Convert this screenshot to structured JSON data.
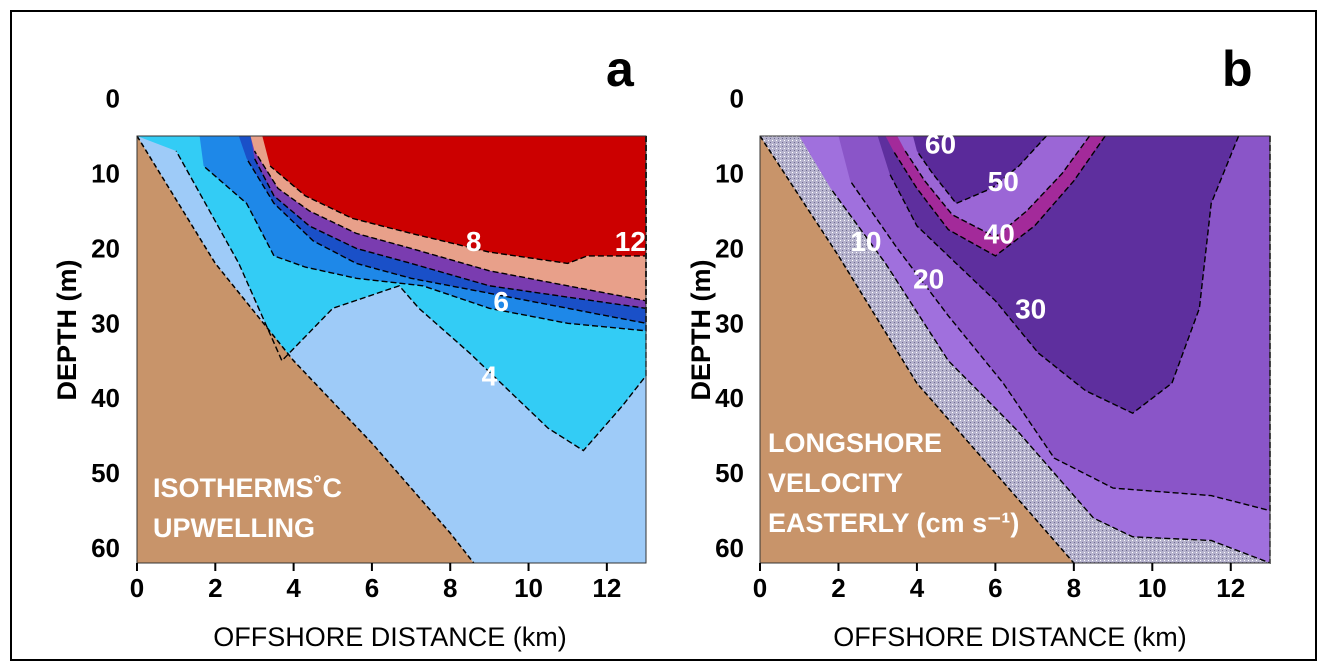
{
  "colors": {
    "seabed": "#c8946a",
    "temp_gt_12": "#cc0000",
    "temp_8_12": "#e8a08a",
    "temp_7_8": "#7a3cb0",
    "temp_6_7": "#1a50c8",
    "temp_5_6": "#1e88e8",
    "temp_4_5": "#33ccf5",
    "temp_lt_4": "#9ecbf8",
    "vel_gt_50": "#5a2a9a",
    "vel_40_50": "#9b66d6",
    "vel_band_40": "#a32a9a",
    "vel_30_40": "#5e2f9e",
    "vel_20_30": "#8a55c8",
    "vel_10_20": "#a070dd",
    "vel_lt_10": "#b5b2cc"
  },
  "chart_data": [
    {
      "panel_letter": "a",
      "type": "contour",
      "xlabel": "OFFSHORE DISTANCE (km)",
      "ylabel": "DEPTH (m)",
      "xlim": [
        0,
        13
      ],
      "ylim": [
        0,
        62
      ],
      "y_inverted": true,
      "x_ticks": [
        0,
        2,
        4,
        6,
        8,
        10,
        12
      ],
      "y_ticks": [
        0,
        10,
        20,
        30,
        40,
        50,
        60
      ],
      "annotation_lines": [
        "ISOTHERMS˚C",
        "UPWELLING"
      ],
      "contour_labels": [
        {
          "text": "8",
          "x": 8.6,
          "y": 19
        },
        {
          "text": "12",
          "x": 12.6,
          "y": 19
        },
        {
          "text": "6",
          "x": 9.3,
          "y": 27
        },
        {
          "text": "4",
          "x": 9.0,
          "y": 37
        }
      ],
      "seabed": [
        [
          0,
          5
        ],
        [
          2,
          22
        ],
        [
          4,
          35
        ],
        [
          6,
          46
        ],
        [
          8,
          58
        ],
        [
          8.6,
          62
        ]
      ],
      "regions": [
        {
          "color_key": "temp_lt_4",
          "points": [
            [
              0,
              5
            ],
            [
              13,
              5
            ],
            [
              13,
              62
            ],
            [
              8.6,
              62
            ],
            [
              8,
              58
            ],
            [
              6,
              46
            ],
            [
              4,
              35
            ],
            [
              2,
              22
            ]
          ]
        },
        {
          "color_key": "temp_4_5",
          "points": [
            [
              0,
              5
            ],
            [
              13,
              5
            ],
            [
              13,
              37
            ],
            [
              12.4,
              41
            ],
            [
              11.4,
              47
            ],
            [
              10.5,
              44
            ],
            [
              8.5,
              34
            ],
            [
              7.2,
              28
            ],
            [
              6.7,
              25
            ],
            [
              5.0,
              28
            ],
            [
              3.7,
              35
            ],
            [
              2.6,
              22
            ],
            [
              1.0,
              7
            ]
          ]
        },
        {
          "color_key": "temp_5_6",
          "points": [
            [
              1.6,
              5
            ],
            [
              13,
              5
            ],
            [
              13,
              31
            ],
            [
              11,
              30
            ],
            [
              9,
              28
            ],
            [
              7.3,
              25
            ],
            [
              5.6,
              24
            ],
            [
              4.3,
              22.5
            ],
            [
              3.5,
              21
            ],
            [
              2.8,
              14
            ],
            [
              1.7,
              9
            ]
          ]
        },
        {
          "color_key": "temp_6_7",
          "points": [
            [
              2.6,
              5
            ],
            [
              13,
              5
            ],
            [
              13,
              30
            ],
            [
              11,
              28
            ],
            [
              9,
              26
            ],
            [
              7,
              24
            ],
            [
              5.6,
              22
            ],
            [
              4.5,
              19
            ],
            [
              3.5,
              14
            ],
            [
              2.8,
              8
            ]
          ]
        },
        {
          "color_key": "temp_7_8",
          "points": [
            [
              2.9,
              5
            ],
            [
              13,
              5
            ],
            [
              13,
              28
            ],
            [
              11,
              26.5
            ],
            [
              9,
              25
            ],
            [
              7,
              22
            ],
            [
              5.6,
              20
            ],
            [
              4.4,
              17
            ],
            [
              3.5,
              13
            ],
            [
              3.0,
              8
            ]
          ]
        },
        {
          "color_key": "temp_8_12",
          "points": [
            [
              2.9,
              5
            ],
            [
              13,
              5
            ],
            [
              13,
              27
            ],
            [
              11,
              25
            ],
            [
              9,
              23
            ],
            [
              7,
              20
            ],
            [
              5.6,
              18
            ],
            [
              4.4,
              15
            ],
            [
              3.6,
              12
            ],
            [
              3.0,
              7
            ]
          ]
        },
        {
          "color_key": "temp_gt_12",
          "points": [
            [
              3.2,
              5
            ],
            [
              13,
              5
            ],
            [
              13,
              21
            ],
            [
              11.5,
              21
            ],
            [
              11,
              22
            ],
            [
              9,
              20.5
            ],
            [
              7,
              18
            ],
            [
              5.5,
              16
            ],
            [
              4.3,
              13
            ],
            [
              3.4,
              9
            ]
          ]
        }
      ]
    },
    {
      "panel_letter": "b",
      "type": "contour",
      "xlabel": "OFFSHORE DISTANCE (km)",
      "ylabel": "DEPTH (m)",
      "xlim": [
        0,
        13
      ],
      "ylim": [
        0,
        62
      ],
      "y_inverted": true,
      "x_ticks": [
        0,
        2,
        4,
        6,
        8,
        10,
        12
      ],
      "y_ticks": [
        0,
        10,
        20,
        30,
        40,
        50,
        60
      ],
      "annotation_lines": [
        "LONGSHORE",
        "VELOCITY",
        "EASTERLY (cm s⁻¹)"
      ],
      "contour_labels": [
        {
          "text": "60",
          "x": 4.6,
          "y": 6
        },
        {
          "text": "50",
          "x": 6.2,
          "y": 11
        },
        {
          "text": "40",
          "x": 6.1,
          "y": 18
        },
        {
          "text": "10",
          "x": 2.7,
          "y": 19
        },
        {
          "text": "20",
          "x": 4.3,
          "y": 24
        },
        {
          "text": "30",
          "x": 6.9,
          "y": 28
        }
      ],
      "seabed": [
        [
          0,
          5
        ],
        [
          2,
          21
        ],
        [
          4,
          38
        ],
        [
          6,
          50
        ],
        [
          8,
          62
        ]
      ],
      "regions": [
        {
          "color_key": "vel_lt_10",
          "points": [
            [
              0,
              5
            ],
            [
              13,
              5
            ],
            [
              13,
              62
            ],
            [
              8,
              62
            ],
            [
              6,
              50
            ],
            [
              4,
              38
            ],
            [
              2,
              21
            ]
          ]
        },
        {
          "color_key": "vel_10_20",
          "points": [
            [
              1.0,
              5
            ],
            [
              13,
              5
            ],
            [
              13,
              62
            ],
            [
              12.5,
              61
            ],
            [
              11.5,
              59
            ],
            [
              9.5,
              58.5
            ],
            [
              8.5,
              56
            ],
            [
              6.5,
              44
            ],
            [
              4.8,
              35
            ],
            [
              3.2,
              22
            ],
            [
              1.8,
              12
            ]
          ]
        },
        {
          "color_key": "vel_20_30",
          "points": [
            [
              2.0,
              5
            ],
            [
              13,
              5
            ],
            [
              13,
              55
            ],
            [
              11.5,
              53
            ],
            [
              9,
              52
            ],
            [
              7.5,
              48
            ],
            [
              6.2,
              38
            ],
            [
              4.8,
              29
            ],
            [
              3.5,
              20
            ],
            [
              2.3,
              11
            ]
          ]
        },
        {
          "color_key": "vel_30_40",
          "points": [
            [
              3.0,
              5
            ],
            [
              12.2,
              5
            ],
            [
              11.5,
              14
            ],
            [
              11.2,
              28
            ],
            [
              10.5,
              38
            ],
            [
              9.5,
              42
            ],
            [
              8.3,
              39
            ],
            [
              7.1,
              34
            ],
            [
              6.0,
              27
            ],
            [
              4.8,
              21
            ],
            [
              4.0,
              17
            ],
            [
              3.3,
              10
            ]
          ]
        },
        {
          "color_key": "vel_band_40",
          "points": [
            [
              3.2,
              5
            ],
            [
              8.8,
              5
            ],
            [
              8.0,
              11
            ],
            [
              7.0,
              17
            ],
            [
              6.0,
              21
            ],
            [
              4.8,
              17.5
            ],
            [
              4.0,
              12
            ],
            [
              3.4,
              7
            ]
          ]
        },
        {
          "color_key": "vel_40_50",
          "points": [
            [
              3.5,
              5
            ],
            [
              8.4,
              5
            ],
            [
              7.7,
              10
            ],
            [
              6.8,
              15
            ],
            [
              6.0,
              18.5
            ],
            [
              4.9,
              15.5
            ],
            [
              4.2,
              11
            ],
            [
              3.7,
              7
            ]
          ]
        },
        {
          "color_key": "vel_gt_50",
          "points": [
            [
              3.9,
              5
            ],
            [
              7.3,
              5
            ],
            [
              6.6,
              9
            ],
            [
              5.9,
              12
            ],
            [
              5.0,
              14
            ],
            [
              4.4,
              10
            ],
            [
              4.0,
              7
            ]
          ]
        }
      ]
    }
  ]
}
